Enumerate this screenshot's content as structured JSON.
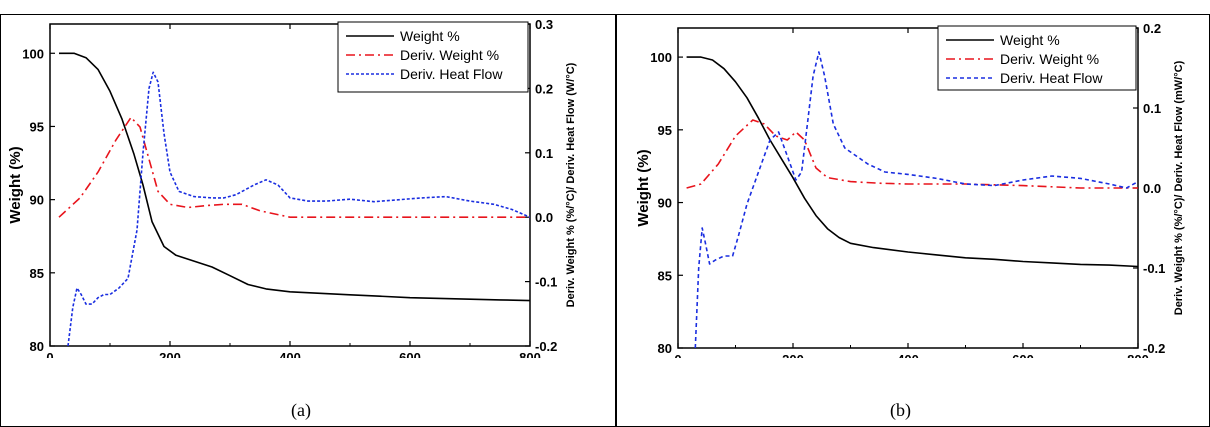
{
  "captions": [
    "(a)",
    "(b)"
  ],
  "chart_data": [
    {
      "type": "line",
      "panel_label": "(a)",
      "xlabel": "Temperature (°C)",
      "ylabel": "Weight (%)",
      "y2label": "Deriv. Weight % (%/°C)/ Deriv. Heat Flow (W/°C)",
      "xlim": [
        0,
        800
      ],
      "ylim": [
        80,
        102
      ],
      "y2lim": [
        -0.2,
        0.3
      ],
      "xticks": [
        0,
        200,
        400,
        600,
        800
      ],
      "yticks": [
        80,
        85,
        90,
        95,
        100
      ],
      "y2ticks": [
        -0.2,
        -0.1,
        0.0,
        0.1,
        0.2,
        0.3
      ],
      "xtick_labels": [
        "0",
        "200",
        "400",
        "600",
        "800"
      ],
      "ytick_labels": [
        "80",
        "85",
        "90",
        "95",
        "100"
      ],
      "y2tick_labels": [
        "-0.2",
        "-0.1",
        "0.0",
        "0.1",
        "0.2",
        "0.3"
      ],
      "grid": false,
      "legend_position": "top-right",
      "series": [
        {
          "name": "Weight %",
          "axis": "left",
          "color": "#000000",
          "style": "solid",
          "x": [
            15,
            40,
            60,
            80,
            100,
            120,
            140,
            155,
            170,
            190,
            210,
            240,
            270,
            300,
            330,
            360,
            400,
            450,
            500,
            550,
            600,
            650,
            700,
            750,
            800
          ],
          "y": [
            100,
            100,
            99.7,
            98.9,
            97.4,
            95.5,
            93.1,
            91,
            88.5,
            86.8,
            86.2,
            85.8,
            85.4,
            84.8,
            84.2,
            83.9,
            83.7,
            83.6,
            83.5,
            83.4,
            83.3,
            83.25,
            83.2,
            83.15,
            83.1
          ]
        },
        {
          "name": "Deriv. Weight %",
          "axis": "right",
          "color": "#e8141c",
          "style": "dashdot",
          "x": [
            15,
            50,
            80,
            110,
            135,
            150,
            165,
            180,
            200,
            230,
            260,
            290,
            320,
            350,
            400,
            500,
            600,
            700,
            800
          ],
          "y": [
            0.0,
            0.03,
            0.07,
            0.12,
            0.155,
            0.14,
            0.09,
            0.04,
            0.02,
            0.015,
            0.018,
            0.02,
            0.02,
            0.01,
            0.0,
            0.0,
            0.0,
            0.0,
            0.0
          ]
        },
        {
          "name": "Deriv. Heat Flow",
          "axis": "right",
          "color": "#1a2ee0",
          "style": "dotted",
          "x": [
            30,
            38,
            45,
            52,
            60,
            70,
            80,
            90,
            100,
            115,
            130,
            145,
            155,
            165,
            172,
            180,
            190,
            200,
            215,
            240,
            270,
            290,
            310,
            340,
            360,
            380,
            400,
            430,
            460,
            500,
            540,
            580,
            620,
            660,
            700,
            740,
            770,
            800
          ],
          "y": [
            -0.2,
            -0.14,
            -0.11,
            -0.12,
            -0.135,
            -0.135,
            -0.125,
            -0.12,
            -0.12,
            -0.11,
            -0.095,
            -0.02,
            0.1,
            0.2,
            0.225,
            0.21,
            0.13,
            0.07,
            0.04,
            0.032,
            0.03,
            0.03,
            0.035,
            0.05,
            0.058,
            0.05,
            0.03,
            0.025,
            0.025,
            0.028,
            0.024,
            0.027,
            0.03,
            0.032,
            0.025,
            0.02,
            0.012,
            0.0
          ]
        }
      ]
    },
    {
      "type": "line",
      "panel_label": "(b)",
      "xlabel": "Temperature (°C)",
      "ylabel": "Weight (%)",
      "y2label": "Deriv. Weight % (%/°C)/ Deriv. Heat Flow (mW/°C)",
      "xlim": [
        0,
        800
      ],
      "ylim": [
        80,
        102
      ],
      "y2lim": [
        -0.2,
        0.2
      ],
      "xticks": [
        0,
        200,
        400,
        600,
        800
      ],
      "yticks": [
        80,
        85,
        90,
        95,
        100
      ],
      "y2ticks": [
        -0.2,
        -0.1,
        0.0,
        0.1,
        0.2
      ],
      "xtick_labels": [
        "0",
        "200",
        "400",
        "600",
        "800"
      ],
      "ytick_labels": [
        "80",
        "85",
        "90",
        "95",
        "100"
      ],
      "y2tick_labels": [
        "-0.2",
        "-0.1",
        "0.0",
        "0.1",
        "0.2"
      ],
      "grid": false,
      "legend_position": "top-right",
      "series": [
        {
          "name": "Weight %",
          "axis": "left",
          "color": "#000000",
          "style": "solid",
          "x": [
            15,
            40,
            60,
            80,
            100,
            120,
            140,
            160,
            180,
            200,
            220,
            240,
            260,
            280,
            300,
            340,
            400,
            450,
            500,
            550,
            600,
            650,
            700,
            750,
            800
          ],
          "y": [
            100,
            100,
            99.8,
            99.2,
            98.3,
            97.2,
            95.8,
            94.3,
            93,
            91.7,
            90.3,
            89.1,
            88.2,
            87.6,
            87.2,
            86.9,
            86.6,
            86.4,
            86.2,
            86.1,
            85.95,
            85.85,
            85.75,
            85.7,
            85.6
          ]
        },
        {
          "name": "Deriv. Weight %",
          "axis": "right",
          "color": "#e8141c",
          "style": "dashdot",
          "x": [
            15,
            40,
            70,
            100,
            130,
            150,
            170,
            190,
            205,
            220,
            240,
            260,
            300,
            350,
            400,
            500,
            600,
            700,
            800
          ],
          "y": [
            0.0,
            0.005,
            0.03,
            0.065,
            0.085,
            0.08,
            0.065,
            0.06,
            0.07,
            0.06,
            0.025,
            0.013,
            0.008,
            0.006,
            0.005,
            0.005,
            0.003,
            0.0,
            0.0
          ],
          "note": "values read relative to right axis"
        },
        {
          "name": "Deriv. Heat Flow",
          "axis": "right",
          "color": "#1a2ee0",
          "style": "dashed",
          "x": [
            30,
            36,
            42,
            48,
            55,
            65,
            80,
            95,
            105,
            120,
            140,
            160,
            175,
            190,
            205,
            215,
            225,
            235,
            245,
            255,
            270,
            290,
            310,
            330,
            360,
            400,
            450,
            500,
            550,
            600,
            650,
            700,
            750,
            780,
            800
          ],
          "y": [
            -0.2,
            -0.1,
            -0.05,
            -0.07,
            -0.095,
            -0.09,
            -0.085,
            -0.085,
            -0.06,
            -0.02,
            0.02,
            0.06,
            0.07,
            0.04,
            0.01,
            0.02,
            0.08,
            0.14,
            0.17,
            0.14,
            0.08,
            0.05,
            0.04,
            0.03,
            0.02,
            0.017,
            0.012,
            0.005,
            0.003,
            0.01,
            0.015,
            0.012,
            0.005,
            0.0,
            0.008
          ]
        }
      ]
    }
  ]
}
